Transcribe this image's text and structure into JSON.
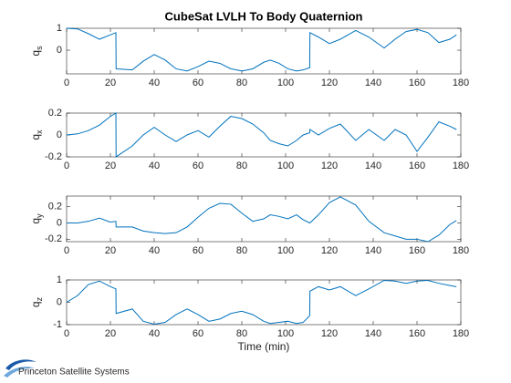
{
  "chart_data": [
    {
      "type": "line",
      "title": "CubeSat LVLH To Body Quaternion",
      "ylabel": "q",
      "ylabel_subscript": "s",
      "x": [
        0,
        5,
        10,
        15,
        20,
        22.5,
        22.6,
        30,
        35,
        40,
        45,
        50,
        55,
        60,
        65,
        70,
        75,
        80,
        85,
        90,
        93,
        97,
        101,
        105,
        108,
        111,
        111.1,
        115,
        120,
        125,
        132,
        138,
        145,
        150,
        155,
        160,
        165,
        170,
        175,
        178
      ],
      "series": [
        {
          "color": "#0072bd",
          "values": [
            1,
            0.97,
            0.75,
            0.5,
            0.7,
            0.8,
            -0.85,
            -0.9,
            -0.5,
            -0.2,
            -0.45,
            -0.85,
            -0.95,
            -0.75,
            -0.5,
            -0.6,
            -0.85,
            -0.95,
            -0.85,
            -0.55,
            -0.45,
            -0.6,
            -0.85,
            -0.95,
            -0.9,
            -0.8,
            0.8,
            0.6,
            0.3,
            0.5,
            0.9,
            0.6,
            0.1,
            0.5,
            0.85,
            0.95,
            0.8,
            0.35,
            0.5,
            0.7
          ]
        }
      ],
      "xlim": [
        0,
        180
      ],
      "xticks": [
        0,
        20,
        40,
        60,
        80,
        100,
        120,
        140,
        160,
        180
      ],
      "ylim": [
        -1.08,
        1
      ],
      "yticks": [
        0,
        1
      ]
    },
    {
      "type": "line",
      "ylabel": "q",
      "ylabel_subscript": "x",
      "x": [
        0,
        5,
        10,
        15,
        20,
        22.5,
        22.6,
        30,
        35,
        40,
        45,
        50,
        55,
        60,
        65,
        70,
        75,
        80,
        85,
        90,
        93,
        97,
        101,
        105,
        108,
        111,
        111.1,
        115,
        120,
        125,
        132,
        138,
        145,
        150,
        155,
        160,
        165,
        170,
        175,
        178
      ],
      "series": [
        {
          "color": "#0072bd",
          "values": [
            0,
            0.01,
            0.04,
            0.09,
            0.17,
            0.2,
            -0.2,
            -0.1,
            0,
            0.07,
            0,
            -0.06,
            0,
            0.04,
            -0.02,
            0.08,
            0.17,
            0.15,
            0.1,
            0.02,
            -0.05,
            -0.08,
            -0.1,
            -0.05,
            0,
            0.02,
            0.05,
            0,
            0.06,
            0.1,
            -0.05,
            0.05,
            -0.05,
            0.05,
            0,
            -0.15,
            -0.02,
            0.12,
            0.08,
            0.05
          ]
        }
      ],
      "xlim": [
        0,
        180
      ],
      "xticks": [
        0,
        20,
        40,
        60,
        80,
        100,
        120,
        140,
        160,
        180
      ],
      "ylim": [
        -0.2,
        0.2
      ],
      "yticks": [
        -0.2,
        0,
        0.2
      ]
    },
    {
      "type": "line",
      "ylabel": "q",
      "ylabel_subscript": "y",
      "x": [
        0,
        5,
        10,
        15,
        20,
        22.5,
        22.6,
        30,
        35,
        40,
        45,
        50,
        55,
        60,
        65,
        70,
        75,
        80,
        85,
        90,
        93,
        97,
        101,
        105,
        108,
        111,
        111.1,
        115,
        120,
        125,
        132,
        138,
        145,
        150,
        155,
        160,
        165,
        170,
        175,
        178
      ],
      "series": [
        {
          "color": "#0072bd",
          "values": [
            0,
            0,
            0.02,
            0.06,
            0.01,
            0.02,
            -0.05,
            -0.05,
            -0.1,
            -0.12,
            -0.13,
            -0.12,
            -0.05,
            0.07,
            0.18,
            0.24,
            0.23,
            0.12,
            0.02,
            0.05,
            0.1,
            0.08,
            0.05,
            0.1,
            0.04,
            0,
            0,
            0.1,
            0.25,
            0.32,
            0.22,
            0.02,
            -0.12,
            -0.16,
            -0.2,
            -0.2,
            -0.23,
            -0.15,
            -0.02,
            0.03
          ]
        }
      ],
      "xlim": [
        0,
        180
      ],
      "xticks": [
        0,
        20,
        40,
        60,
        80,
        100,
        120,
        140,
        160,
        180
      ],
      "ylim": [
        -0.23,
        0.33
      ],
      "yticks": [
        -0.2,
        0,
        0.2
      ]
    },
    {
      "type": "line",
      "ylabel": "q",
      "ylabel_subscript": "z",
      "xlabel": "Time (min)",
      "x": [
        0,
        5,
        10,
        15,
        20,
        22.5,
        22.6,
        30,
        35,
        40,
        45,
        50,
        55,
        60,
        65,
        70,
        75,
        80,
        85,
        90,
        93,
        97,
        101,
        105,
        108,
        111,
        111.1,
        115,
        120,
        125,
        132,
        138,
        145,
        150,
        155,
        160,
        165,
        170,
        175,
        178
      ],
      "series": [
        {
          "color": "#0072bd",
          "values": [
            0,
            0.3,
            0.8,
            0.95,
            0.7,
            0.6,
            -0.5,
            -0.3,
            -0.85,
            -0.98,
            -0.9,
            -0.55,
            -0.3,
            -0.55,
            -0.85,
            -0.75,
            -0.5,
            -0.4,
            -0.55,
            -0.85,
            -0.95,
            -0.9,
            -0.85,
            -0.95,
            -0.9,
            -0.6,
            0.5,
            0.7,
            0.55,
            0.7,
            0.3,
            0.6,
            0.98,
            0.95,
            0.85,
            0.95,
            0.98,
            0.85,
            0.75,
            0.7
          ]
        }
      ],
      "xlim": [
        0,
        180
      ],
      "xticks": [
        0,
        20,
        40,
        60,
        80,
        100,
        120,
        140,
        160,
        180
      ],
      "ylim": [
        -1,
        1
      ],
      "yticks": [
        -1,
        0,
        1
      ]
    }
  ],
  "logo": {
    "text": "Princeton Satellite Systems"
  }
}
